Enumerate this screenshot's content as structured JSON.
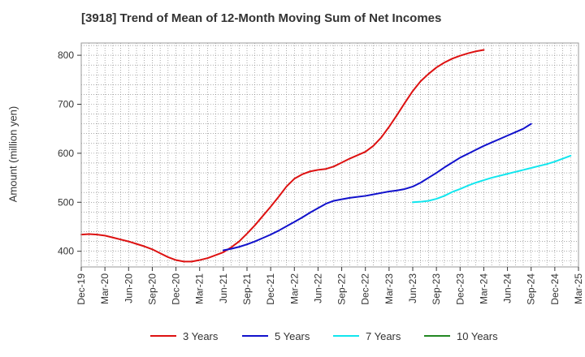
{
  "chart_data": {
    "type": "line",
    "title": "[3918]  Trend of Mean of 12-Month Moving Sum of Net Incomes",
    "xlabel": "",
    "ylabel": "Amount (million yen)",
    "ylim": [
      368,
      825
    ],
    "y_ticks": [
      400,
      500,
      600,
      700,
      800
    ],
    "x_tick_labels": [
      "Dec-19",
      "Mar-20",
      "Jun-20",
      "Sep-20",
      "Dec-20",
      "Mar-21",
      "Jun-21",
      "Sep-21",
      "Dec-21",
      "Mar-22",
      "Jun-22",
      "Sep-22",
      "Dec-22",
      "Mar-23",
      "Jun-23",
      "Sep-23",
      "Dec-23",
      "Mar-24",
      "Jun-24",
      "Sep-24",
      "Dec-24",
      "Mar-25"
    ],
    "grid": true,
    "legend_position": "bottom",
    "series": [
      {
        "name": "3 Years",
        "color": "#dd1111",
        "start_index": 0,
        "values": [
          434,
          435,
          434,
          432,
          428,
          424,
          420,
          415,
          410,
          404,
          396,
          388,
          382,
          379,
          379,
          382,
          386,
          392,
          398,
          408,
          420,
          436,
          453,
          472,
          491,
          511,
          532,
          548,
          557,
          563,
          566,
          568,
          573,
          581,
          589,
          596,
          603,
          615,
          632,
          654,
          678,
          703,
          727,
          747,
          762,
          775,
          785,
          793,
          799,
          804,
          808,
          811
        ]
      },
      {
        "name": "5 Years",
        "color": "#1111cc",
        "start_index": 18,
        "values": [
          402,
          405,
          409,
          414,
          420,
          427,
          434,
          442,
          451,
          460,
          469,
          479,
          488,
          497,
          503,
          506,
          509,
          511,
          513,
          516,
          519,
          522,
          524,
          527,
          532,
          540,
          550,
          560,
          571,
          581,
          591,
          599,
          607,
          615,
          622,
          629,
          636,
          643,
          650,
          660
        ]
      },
      {
        "name": "7 Years",
        "color": "#11e6ee",
        "start_index": 42,
        "values": [
          500,
          501,
          503,
          507,
          513,
          521,
          527,
          534,
          540,
          545,
          550,
          554,
          558,
          562,
          566,
          570,
          574,
          578,
          583,
          589,
          595
        ]
      },
      {
        "name": "10 Years",
        "color": "#228822",
        "start_index": 0,
        "values": []
      }
    ]
  }
}
